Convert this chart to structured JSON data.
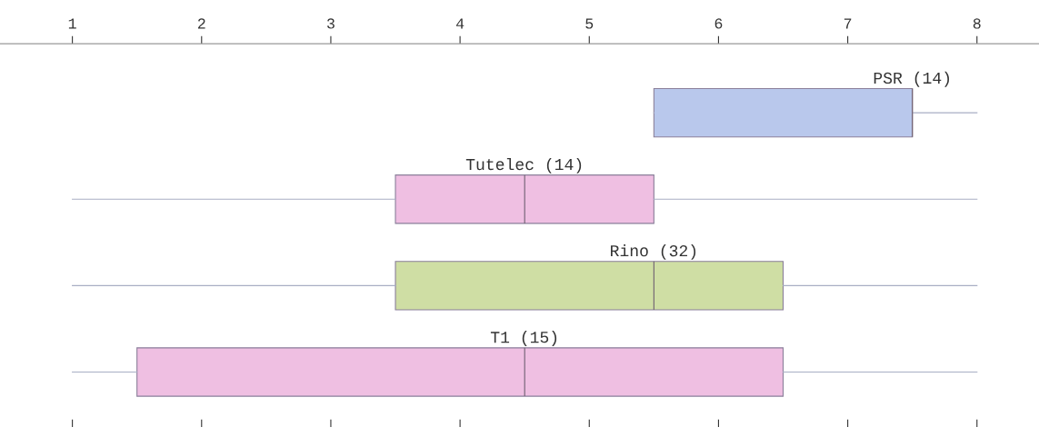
{
  "chart_data": {
    "type": "box",
    "orientation": "horizontal",
    "categories": [
      "PSR (14)",
      "Tutelec (14)",
      "Rino (32)",
      "T1 (15)"
    ],
    "colors": [
      "#b9c8ec",
      "#efbfe2",
      "#cfdea4",
      "#efbfe2"
    ],
    "boxes": [
      {
        "low": 5.5,
        "q1": 5.5,
        "median": 7.5,
        "q3": 7.5,
        "high": 8
      },
      {
        "low": 1,
        "q1": 3.5,
        "median": 4.5,
        "q3": 5.5,
        "high": 8
      },
      {
        "low": 1,
        "q1": 3.5,
        "median": 5.5,
        "q3": 6.5,
        "high": 8
      },
      {
        "low": 1,
        "q1": 1.5,
        "median": 4.5,
        "q3": 6.5,
        "high": 8
      }
    ],
    "xlim": [
      0.44,
      8.48
    ],
    "xticks": [
      1,
      2,
      3,
      4,
      5,
      6,
      7,
      8
    ],
    "grid": false,
    "legend": false
  }
}
